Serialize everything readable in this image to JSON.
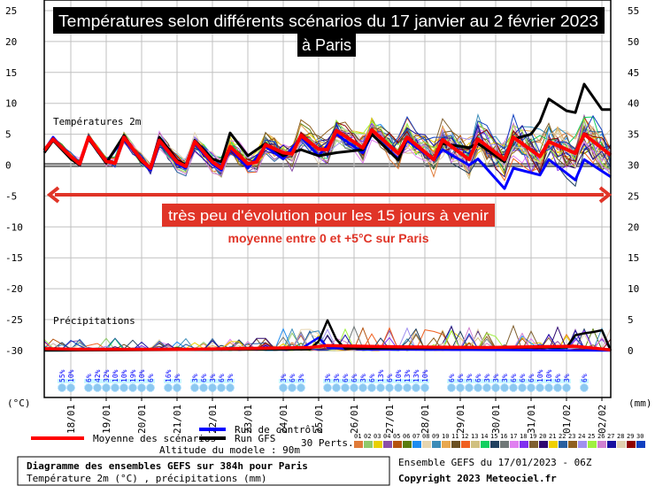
{
  "chart_data": {
    "type": "line",
    "title": "Températures selon différents scénarios du 17 janvier au 2 février 2023",
    "title_line2": "à Paris",
    "annotation_box": "très peu d'évolution pour les 15 jours à venir",
    "annotation_sub": "moyenne entre 0 et +5°C sur Paris",
    "temp_label": "Températures 2m",
    "precip_label": "Précipitations",
    "ylabel_left": "(°C)",
    "ylabel_right": "(mm)",
    "ylim_left": [
      -30,
      25
    ],
    "ylim_right": [
      0,
      55
    ],
    "ytick_step": 5,
    "x_unit": "hours since 17/01/2023 06Z",
    "xlim_hours": [
      0,
      384
    ],
    "x_ticks": [
      {
        "label": "18/01",
        "hour": 18
      },
      {
        "label": "19/01",
        "hour": 42
      },
      {
        "label": "20/01",
        "hour": 66
      },
      {
        "label": "21/01",
        "hour": 90
      },
      {
        "label": "22/01",
        "hour": 114
      },
      {
        "label": "23/01",
        "hour": 138
      },
      {
        "label": "24/01",
        "hour": 162
      },
      {
        "label": "25/01",
        "hour": 186
      },
      {
        "label": "26/01",
        "hour": 210
      },
      {
        "label": "27/01",
        "hour": 234
      },
      {
        "label": "28/01",
        "hour": 258
      },
      {
        "label": "29/01",
        "hour": 282
      },
      {
        "label": "30/01",
        "hour": 306
      },
      {
        "label": "31/01",
        "hour": 330
      },
      {
        "label": "01/02",
        "hour": 354
      },
      {
        "label": "02/02",
        "hour": 378
      }
    ],
    "grid": true,
    "series": {
      "mean": {
        "name": "Moyenne des scénarios",
        "color": "#ff0000",
        "points": [
          [
            0,
            2.4
          ],
          [
            6,
            4.2
          ],
          [
            18,
            1.4
          ],
          [
            24,
            0.2
          ],
          [
            30,
            4.5
          ],
          [
            42,
            0.6
          ],
          [
            48,
            0.3
          ],
          [
            54,
            4.5
          ],
          [
            66,
            0.8
          ],
          [
            72,
            -0.5
          ],
          [
            78,
            4
          ],
          [
            90,
            0.5
          ],
          [
            96,
            -0.2
          ],
          [
            102,
            3.8
          ],
          [
            114,
            0.5
          ],
          [
            120,
            -0.5
          ],
          [
            126,
            3
          ],
          [
            138,
            0.2
          ],
          [
            144,
            0.5
          ],
          [
            150,
            3.3
          ],
          [
            162,
            2
          ],
          [
            168,
            1.8
          ],
          [
            174,
            4.8
          ],
          [
            186,
            2.6
          ],
          [
            192,
            2.5
          ],
          [
            198,
            5.6
          ],
          [
            216,
            2.8
          ],
          [
            222,
            5.7
          ],
          [
            240,
            1.9
          ],
          [
            246,
            4.5
          ],
          [
            264,
            0.9
          ],
          [
            270,
            4.1
          ],
          [
            288,
            0.9
          ],
          [
            294,
            4.2
          ],
          [
            312,
            0.9
          ],
          [
            318,
            4.5
          ],
          [
            336,
            1.4
          ],
          [
            342,
            3.8
          ],
          [
            360,
            1.9
          ],
          [
            366,
            5
          ],
          [
            384,
            1.6
          ]
        ]
      },
      "control": {
        "name": "Run de contrôle",
        "color": "#0000ff",
        "points": [
          [
            0,
            2.4
          ],
          [
            6,
            4.5
          ],
          [
            18,
            1.2
          ],
          [
            24,
            0
          ],
          [
            30,
            4.3
          ],
          [
            42,
            0.5
          ],
          [
            54,
            4.3
          ],
          [
            66,
            0.5
          ],
          [
            72,
            -0.8
          ],
          [
            78,
            3.8
          ],
          [
            90,
            0.2
          ],
          [
            96,
            -0.5
          ],
          [
            102,
            3.5
          ],
          [
            114,
            0.2
          ],
          [
            120,
            -0.8
          ],
          [
            126,
            2.8
          ],
          [
            138,
            -0.5
          ],
          [
            150,
            3
          ],
          [
            162,
            1
          ],
          [
            174,
            4.5
          ],
          [
            186,
            1.5
          ],
          [
            198,
            5
          ],
          [
            216,
            2
          ],
          [
            222,
            5
          ],
          [
            240,
            1
          ],
          [
            246,
            4
          ],
          [
            264,
            0.8
          ],
          [
            270,
            2.5
          ],
          [
            288,
            0
          ],
          [
            294,
            1
          ],
          [
            312,
            -3.8
          ],
          [
            318,
            -0.5
          ],
          [
            336,
            -1.6
          ],
          [
            342,
            0.9
          ],
          [
            360,
            -2.4
          ],
          [
            366,
            0.9
          ],
          [
            384,
            -1.9
          ]
        ]
      },
      "gfs": {
        "name": "Run GFS",
        "color": "#000000",
        "points": [
          [
            0,
            2
          ],
          [
            6,
            4
          ],
          [
            18,
            1
          ],
          [
            24,
            0
          ],
          [
            30,
            4.3
          ],
          [
            42,
            0.3
          ],
          [
            54,
            4.8
          ],
          [
            66,
            0.5
          ],
          [
            72,
            -0.3
          ],
          [
            78,
            4.5
          ],
          [
            90,
            0.8
          ],
          [
            96,
            0
          ],
          [
            102,
            4
          ],
          [
            114,
            1
          ],
          [
            120,
            0.5
          ],
          [
            126,
            5.2
          ],
          [
            138,
            1.5
          ],
          [
            150,
            3.5
          ],
          [
            162,
            1.5
          ],
          [
            174,
            2.5
          ],
          [
            186,
            1.5
          ],
          [
            198,
            2
          ],
          [
            216,
            2.5
          ],
          [
            222,
            5
          ],
          [
            240,
            0.8
          ],
          [
            246,
            4.5
          ],
          [
            264,
            1
          ],
          [
            270,
            3.5
          ],
          [
            288,
            2.8
          ],
          [
            294,
            3.5
          ],
          [
            312,
            0.5
          ],
          [
            318,
            4.2
          ],
          [
            330,
            5
          ],
          [
            336,
            7
          ],
          [
            342,
            10.7
          ],
          [
            354,
            8.8
          ],
          [
            360,
            8.5
          ],
          [
            366,
            13.1
          ],
          [
            378,
            9
          ],
          [
            384,
            9
          ]
        ]
      }
    },
    "precip_series": {
      "mean": [
        [
          0,
          0.3
        ],
        [
          24,
          0.2
        ],
        [
          96,
          0.2
        ],
        [
          180,
          0.5
        ],
        [
          192,
          0.8
        ],
        [
          240,
          0.6
        ],
        [
          300,
          0.5
        ],
        [
          360,
          0.7
        ],
        [
          384,
          0.1
        ]
      ],
      "control": [
        [
          0,
          0.1
        ],
        [
          174,
          0.3
        ],
        [
          186,
          2.1
        ],
        [
          192,
          0.5
        ],
        [
          216,
          0.2
        ],
        [
          384,
          0
        ]
      ],
      "gfs": [
        [
          0,
          0
        ],
        [
          180,
          0.2
        ],
        [
          186,
          1.5
        ],
        [
          192,
          4.9
        ],
        [
          198,
          1.8
        ],
        [
          204,
          0.3
        ],
        [
          354,
          0.5
        ],
        [
          360,
          2.5
        ],
        [
          366,
          2.8
        ],
        [
          372,
          3
        ],
        [
          378,
          3.3
        ],
        [
          384,
          0
        ]
      ]
    },
    "snow_probability_pct": [
      [
        12,
        55
      ],
      [
        18,
        10
      ],
      [
        30,
        6
      ],
      [
        36,
        42
      ],
      [
        42,
        32
      ],
      [
        48,
        10
      ],
      [
        54,
        10
      ],
      [
        60,
        19
      ],
      [
        66,
        10
      ],
      [
        72,
        6
      ],
      [
        84,
        16
      ],
      [
        90,
        3
      ],
      [
        102,
        3
      ],
      [
        108,
        6
      ],
      [
        114,
        3
      ],
      [
        120,
        6
      ],
      [
        126,
        3
      ],
      [
        162,
        3
      ],
      [
        168,
        6
      ],
      [
        174,
        3
      ],
      [
        192,
        3
      ],
      [
        198,
        3
      ],
      [
        204,
        6
      ],
      [
        210,
        6
      ],
      [
        216,
        3
      ],
      [
        222,
        6
      ],
      [
        228,
        13
      ],
      [
        234,
        6
      ],
      [
        240,
        10
      ],
      [
        246,
        13
      ],
      [
        252,
        13
      ],
      [
        258,
        10
      ],
      [
        276,
        6
      ],
      [
        282,
        6
      ],
      [
        288,
        3
      ],
      [
        294,
        6
      ],
      [
        300,
        3
      ],
      [
        306,
        3
      ],
      [
        312,
        3
      ],
      [
        318,
        6
      ],
      [
        324,
        6
      ],
      [
        330,
        6
      ],
      [
        336,
        10
      ],
      [
        342,
        10
      ],
      [
        348,
        6
      ],
      [
        354,
        3
      ],
      [
        366,
        6
      ]
    ]
  },
  "legend": {
    "mean_label": "Moyenne des scénarios",
    "control_label": "Run de contrôle",
    "gfs_label": "Run GFS",
    "perts_label": "30 Perts.",
    "altitude": "Altitude du modele : 90m",
    "perts": [
      {
        "id": "01",
        "color": "#e07b39"
      },
      {
        "id": "02",
        "color": "#8fc96b"
      },
      {
        "id": "03",
        "color": "#e8d000"
      },
      {
        "id": "04",
        "color": "#8b4fa8"
      },
      {
        "id": "05",
        "color": "#b5530f"
      },
      {
        "id": "06",
        "color": "#5a7d0d"
      },
      {
        "id": "07",
        "color": "#1e8cf0"
      },
      {
        "id": "08",
        "color": "#e6d5b0"
      },
      {
        "id": "09",
        "color": "#3b8cb8"
      },
      {
        "id": "10",
        "color": "#e8a850"
      },
      {
        "id": "11",
        "color": "#6b5020"
      },
      {
        "id": "12",
        "color": "#f06020"
      },
      {
        "id": "13",
        "color": "#d0c080"
      },
      {
        "id": "14",
        "color": "#10d060"
      },
      {
        "id": "15",
        "color": "#204060"
      },
      {
        "id": "16",
        "color": "#707878"
      },
      {
        "id": "17",
        "color": "#e080f0"
      },
      {
        "id": "18",
        "color": "#8030f0"
      },
      {
        "id": "19",
        "color": "#806030"
      },
      {
        "id": "20",
        "color": "#300870"
      },
      {
        "id": "21",
        "color": "#f0d000"
      },
      {
        "id": "22",
        "color": "#2860a0"
      },
      {
        "id": "23",
        "color": "#906020"
      },
      {
        "id": "24",
        "color": "#a090f0"
      },
      {
        "id": "25",
        "color": "#a0f040"
      },
      {
        "id": "26",
        "color": "#d080d0"
      },
      {
        "id": "27",
        "color": "#1810a0"
      },
      {
        "id": "28",
        "color": "#e0d0b0"
      },
      {
        "id": "29",
        "color": "#900000"
      },
      {
        "id": "30",
        "color": "#1040c0"
      }
    ]
  },
  "footer": {
    "box_title": "Diagramme des ensembles GEFS sur 384h pour Paris",
    "box_subtitle": "Température 2m (°C) , précipitations (mm)",
    "run_info": "Ensemble GEFS du 17/01/2023 - 06Z",
    "copyright": "Copyright 2023 Meteociel.fr"
  },
  "colors": {
    "annotation_red": "#e03427",
    "title_bg": "#000000",
    "snow_band": "#c8f8ff"
  }
}
